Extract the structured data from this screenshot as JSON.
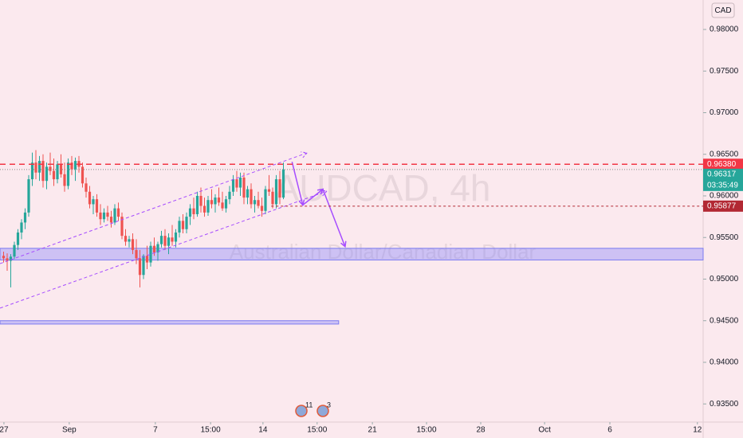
{
  "chart_data": {
    "type": "candlestick",
    "title": "AUDCAD, 4h",
    "subtitle": "Australian Dollar/Canadian Dollar",
    "currency": "CAD",
    "up_color": "#26a69a",
    "down_color": "#ef5350",
    "open": [
      0.9528,
      0.9525,
      0.9522,
      0.9527,
      0.9541,
      0.9556,
      0.9568,
      0.958,
      0.962,
      0.964,
      0.9628,
      0.9642,
      0.9618,
      0.9635,
      0.963,
      0.962,
      0.9638,
      0.9626,
      0.9612,
      0.964,
      0.9632,
      0.9642,
      0.9635,
      0.9615,
      0.9605,
      0.959,
      0.9596,
      0.958,
      0.9572,
      0.958,
      0.9575,
      0.9568,
      0.9585,
      0.9575,
      0.9552,
      0.9545,
      0.9548,
      0.9535,
      0.9525,
      0.9505,
      0.9528,
      0.952,
      0.954,
      0.9532,
      0.9542,
      0.9552,
      0.954,
      0.955,
      0.9545,
      0.9556,
      0.957,
      0.956,
      0.9575,
      0.9585,
      0.9578,
      0.96,
      0.9588,
      0.958,
      0.9595,
      0.959,
      0.9598,
      0.9592,
      0.9585,
      0.9596,
      0.9605,
      0.962,
      0.961,
      0.9622,
      0.9598,
      0.9608,
      0.959,
      0.9595,
      0.9588,
      0.9582,
      0.9608,
      0.9605,
      0.959,
      0.962,
      0.9598
    ],
    "high": [
      0.9533,
      0.9531,
      0.953,
      0.9545,
      0.956,
      0.9572,
      0.9585,
      0.9625,
      0.9652,
      0.9655,
      0.9648,
      0.965,
      0.964,
      0.9652,
      0.9645,
      0.9642,
      0.965,
      0.964,
      0.9645,
      0.9648,
      0.9646,
      0.9648,
      0.964,
      0.9622,
      0.9612,
      0.96,
      0.9602,
      0.959,
      0.9585,
      0.9588,
      0.9582,
      0.959,
      0.9592,
      0.958,
      0.956,
      0.9552,
      0.9555,
      0.9548,
      0.9535,
      0.953,
      0.954,
      0.9545,
      0.955,
      0.9545,
      0.9558,
      0.956,
      0.9555,
      0.9565,
      0.956,
      0.9575,
      0.9578,
      0.958,
      0.959,
      0.9598,
      0.9605,
      0.961,
      0.9598,
      0.96,
      0.9608,
      0.9602,
      0.961,
      0.9605,
      0.96,
      0.9612,
      0.9625,
      0.963,
      0.9628,
      0.9628,
      0.9612,
      0.9615,
      0.96,
      0.9605,
      0.9598,
      0.9612,
      0.9625,
      0.961,
      0.9625,
      0.963,
      0.964
    ],
    "low": [
      0.952,
      0.951,
      0.949,
      0.9524,
      0.9535,
      0.9548,
      0.956,
      0.9575,
      0.9612,
      0.962,
      0.9618,
      0.961,
      0.9608,
      0.9625,
      0.9612,
      0.9615,
      0.9622,
      0.9605,
      0.9608,
      0.9625,
      0.9618,
      0.9628,
      0.961,
      0.9598,
      0.9585,
      0.9578,
      0.9575,
      0.9565,
      0.9568,
      0.957,
      0.9562,
      0.9565,
      0.957,
      0.9548,
      0.954,
      0.9538,
      0.953,
      0.9518,
      0.949,
      0.95,
      0.9512,
      0.9515,
      0.9528,
      0.9522,
      0.9538,
      0.9535,
      0.953,
      0.954,
      0.9538,
      0.955,
      0.9555,
      0.9555,
      0.9565,
      0.9572,
      0.9575,
      0.958,
      0.9575,
      0.9576,
      0.9585,
      0.958,
      0.9588,
      0.9582,
      0.958,
      0.959,
      0.96,
      0.9605,
      0.96,
      0.959,
      0.959,
      0.9585,
      0.958,
      0.9585,
      0.9575,
      0.9578,
      0.96,
      0.9585,
      0.9585,
      0.959,
      0.9596
    ],
    "close": [
      0.9525,
      0.9522,
      0.9527,
      0.9541,
      0.9556,
      0.9568,
      0.958,
      0.962,
      0.964,
      0.9628,
      0.9642,
      0.9618,
      0.9635,
      0.963,
      0.962,
      0.9638,
      0.9626,
      0.9612,
      0.964,
      0.9632,
      0.9642,
      0.9635,
      0.9615,
      0.9605,
      0.959,
      0.9596,
      0.958,
      0.9572,
      0.958,
      0.9575,
      0.9568,
      0.9585,
      0.9575,
      0.9552,
      0.9545,
      0.9548,
      0.9535,
      0.9525,
      0.9505,
      0.9528,
      0.952,
      0.954,
      0.9532,
      0.9542,
      0.9552,
      0.954,
      0.955,
      0.9545,
      0.9556,
      0.957,
      0.956,
      0.9575,
      0.9585,
      0.9578,
      0.96,
      0.9588,
      0.958,
      0.9595,
      0.959,
      0.9598,
      0.9592,
      0.9585,
      0.9596,
      0.9605,
      0.962,
      0.961,
      0.9622,
      0.9598,
      0.9608,
      0.959,
      0.9595,
      0.9588,
      0.9582,
      0.9608,
      0.9605,
      0.959,
      0.962,
      0.9598,
      0.96317
    ],
    "xlim": [
      -1,
      195
    ],
    "xticks": [
      {
        "value": 0.1,
        "label": "27"
      },
      {
        "value": 18.3,
        "label": "Sep"
      },
      {
        "value": 42.3,
        "label": "7"
      },
      {
        "value": 57.7,
        "label": "15:00"
      },
      {
        "value": 72.3,
        "label": "14"
      },
      {
        "value": 87.4,
        "label": "15:00"
      },
      {
        "value": 102.8,
        "label": "21"
      },
      {
        "value": 117.9,
        "label": "15:00"
      },
      {
        "value": 133,
        "label": "28"
      },
      {
        "value": 150.8,
        "label": "Oct"
      },
      {
        "value": 169,
        "label": "6"
      },
      {
        "value": 193.4,
        "label": "12"
      }
    ],
    "ylim": [
      0.93282,
      0.98354
    ],
    "yticks": [
      {
        "value": 0.98,
        "label": "0.98000"
      },
      {
        "value": 0.975,
        "label": "0.97500"
      },
      {
        "value": 0.97,
        "label": "0.97000"
      },
      {
        "value": 0.965,
        "label": "0.96500"
      },
      {
        "value": 0.96,
        "label": "0.96000"
      },
      {
        "value": 0.955,
        "label": "0.95500"
      },
      {
        "value": 0.95,
        "label": "0.95000"
      },
      {
        "value": 0.945,
        "label": "0.94500"
      },
      {
        "value": 0.94,
        "label": "0.94000"
      },
      {
        "value": 0.935,
        "label": "0.93500"
      }
    ],
    "resistance": {
      "value": 0.9638,
      "label": "0.96380",
      "color": "#f23645"
    },
    "last_price": {
      "value": 0.96317,
      "label": "0.96317",
      "countdown": "03:35:49",
      "color": "#26a69a"
    },
    "level": {
      "value": 0.95877,
      "label": "0.95877",
      "from": 74.6,
      "color": "#b22833"
    },
    "zones": [
      {
        "low": 0.9523,
        "high": 0.9537,
        "from": -1,
        "to": 195
      },
      {
        "low": 0.9446,
        "high": 0.945,
        "from": -1,
        "to": 93.4
      }
    ],
    "channel": [
      {
        "x": [
          -1,
          84.6
        ],
        "y": [
          0.95186,
          0.96517
        ]
      },
      {
        "x": [
          -1,
          90.1
        ],
        "y": [
          0.94651,
          0.96057
        ]
      }
    ],
    "path": {
      "x": [
        80.4,
        83.4,
        89,
        95.2
      ],
      "y": [
        0.9641,
        0.9589,
        0.9608,
        0.9539
      ],
      "color": "#a64dff"
    },
    "events": [
      {
        "x": 83,
        "label": "11"
      },
      {
        "x": 89,
        "label": "3"
      }
    ]
  }
}
